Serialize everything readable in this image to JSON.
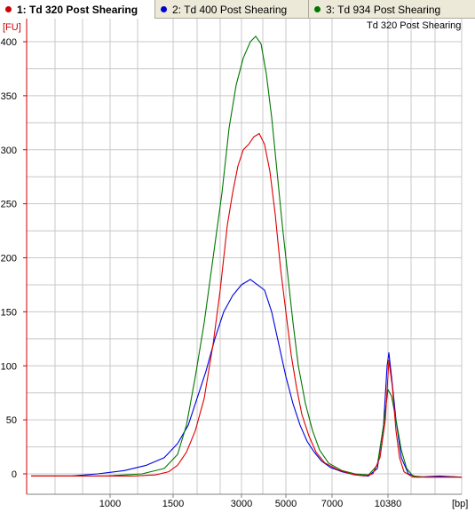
{
  "tabs": [
    {
      "label": "1: Td 320 Post Shearing",
      "color": "#cc0000",
      "active": true
    },
    {
      "label": "2: Td 400 Post Shearing",
      "color": "#0000cc",
      "active": false
    },
    {
      "label": "3: Td 934 Post Shearing",
      "color": "#007700",
      "active": false
    }
  ],
  "chart_data": {
    "type": "line",
    "title": "Td 320 Post Shearing",
    "ylabel": "[FU]",
    "xlabel": "[bp]",
    "ylim": [
      -10,
      410
    ],
    "y_ticks": [
      0,
      50,
      100,
      150,
      200,
      250,
      300,
      350,
      400
    ],
    "x_tick_labels": [
      "1000",
      "1500",
      "3000",
      "5000",
      "7000",
      "10380"
    ],
    "grid": true,
    "series": [
      {
        "name": "1: Td 320 Post Shearing",
        "color": "#dd0000",
        "points": [
          [
            35,
            -2
          ],
          [
            100,
            -2
          ],
          [
            150,
            -2
          ],
          [
            175,
            -1
          ],
          [
            190,
            2
          ],
          [
            200,
            8
          ],
          [
            210,
            20
          ],
          [
            220,
            40
          ],
          [
            230,
            70
          ],
          [
            240,
            120
          ],
          [
            248,
            170
          ],
          [
            256,
            230
          ],
          [
            262,
            260
          ],
          [
            268,
            285
          ],
          [
            274,
            300
          ],
          [
            280,
            305
          ],
          [
            286,
            312
          ],
          [
            292,
            315
          ],
          [
            298,
            305
          ],
          [
            304,
            280
          ],
          [
            310,
            240
          ],
          [
            316,
            190
          ],
          [
            322,
            150
          ],
          [
            328,
            110
          ],
          [
            334,
            80
          ],
          [
            340,
            55
          ],
          [
            348,
            35
          ],
          [
            356,
            20
          ],
          [
            366,
            10
          ],
          [
            380,
            4
          ],
          [
            395,
            0
          ],
          [
            410,
            -2
          ],
          [
            420,
            0
          ],
          [
            428,
            15
          ],
          [
            434,
            50
          ],
          [
            438,
            105
          ],
          [
            442,
            80
          ],
          [
            446,
            40
          ],
          [
            450,
            15
          ],
          [
            455,
            2
          ],
          [
            465,
            -3
          ],
          [
            490,
            -3
          ],
          [
            520,
            -3
          ]
        ]
      },
      {
        "name": "2: Td 400 Post Shearing",
        "color": "#0000dd",
        "points": [
          [
            35,
            -2
          ],
          [
            80,
            -2
          ],
          [
            110,
            0
          ],
          [
            140,
            3
          ],
          [
            165,
            8
          ],
          [
            185,
            15
          ],
          [
            200,
            28
          ],
          [
            212,
            45
          ],
          [
            222,
            70
          ],
          [
            232,
            95
          ],
          [
            242,
            125
          ],
          [
            252,
            150
          ],
          [
            262,
            165
          ],
          [
            272,
            175
          ],
          [
            282,
            180
          ],
          [
            290,
            175
          ],
          [
            298,
            170
          ],
          [
            306,
            150
          ],
          [
            314,
            120
          ],
          [
            322,
            90
          ],
          [
            330,
            65
          ],
          [
            338,
            45
          ],
          [
            346,
            30
          ],
          [
            354,
            20
          ],
          [
            362,
            12
          ],
          [
            372,
            6
          ],
          [
            385,
            2
          ],
          [
            400,
            -1
          ],
          [
            415,
            -2
          ],
          [
            425,
            5
          ],
          [
            432,
            45
          ],
          [
            436,
            100
          ],
          [
            438,
            112
          ],
          [
            441,
            90
          ],
          [
            446,
            50
          ],
          [
            452,
            15
          ],
          [
            460,
            0
          ],
          [
            470,
            -3
          ],
          [
            495,
            -2
          ],
          [
            520,
            -3
          ]
        ]
      },
      {
        "name": "3: Td 934 Post Shearing",
        "color": "#007700",
        "points": [
          [
            35,
            -2
          ],
          [
            120,
            -2
          ],
          [
            160,
            0
          ],
          [
            185,
            5
          ],
          [
            200,
            18
          ],
          [
            210,
            45
          ],
          [
            220,
            90
          ],
          [
            230,
            140
          ],
          [
            240,
            200
          ],
          [
            250,
            260
          ],
          [
            258,
            320
          ],
          [
            266,
            360
          ],
          [
            274,
            385
          ],
          [
            282,
            400
          ],
          [
            288,
            405
          ],
          [
            294,
            398
          ],
          [
            300,
            370
          ],
          [
            306,
            330
          ],
          [
            312,
            280
          ],
          [
            318,
            230
          ],
          [
            324,
            185
          ],
          [
            330,
            140
          ],
          [
            336,
            100
          ],
          [
            344,
            65
          ],
          [
            352,
            40
          ],
          [
            360,
            22
          ],
          [
            370,
            10
          ],
          [
            385,
            3
          ],
          [
            400,
            0
          ],
          [
            415,
            -1
          ],
          [
            425,
            8
          ],
          [
            432,
            45
          ],
          [
            437,
            78
          ],
          [
            441,
            72
          ],
          [
            446,
            50
          ],
          [
            452,
            22
          ],
          [
            458,
            5
          ],
          [
            465,
            -2
          ],
          [
            480,
            -3
          ],
          [
            520,
            -3
          ]
        ]
      }
    ]
  }
}
